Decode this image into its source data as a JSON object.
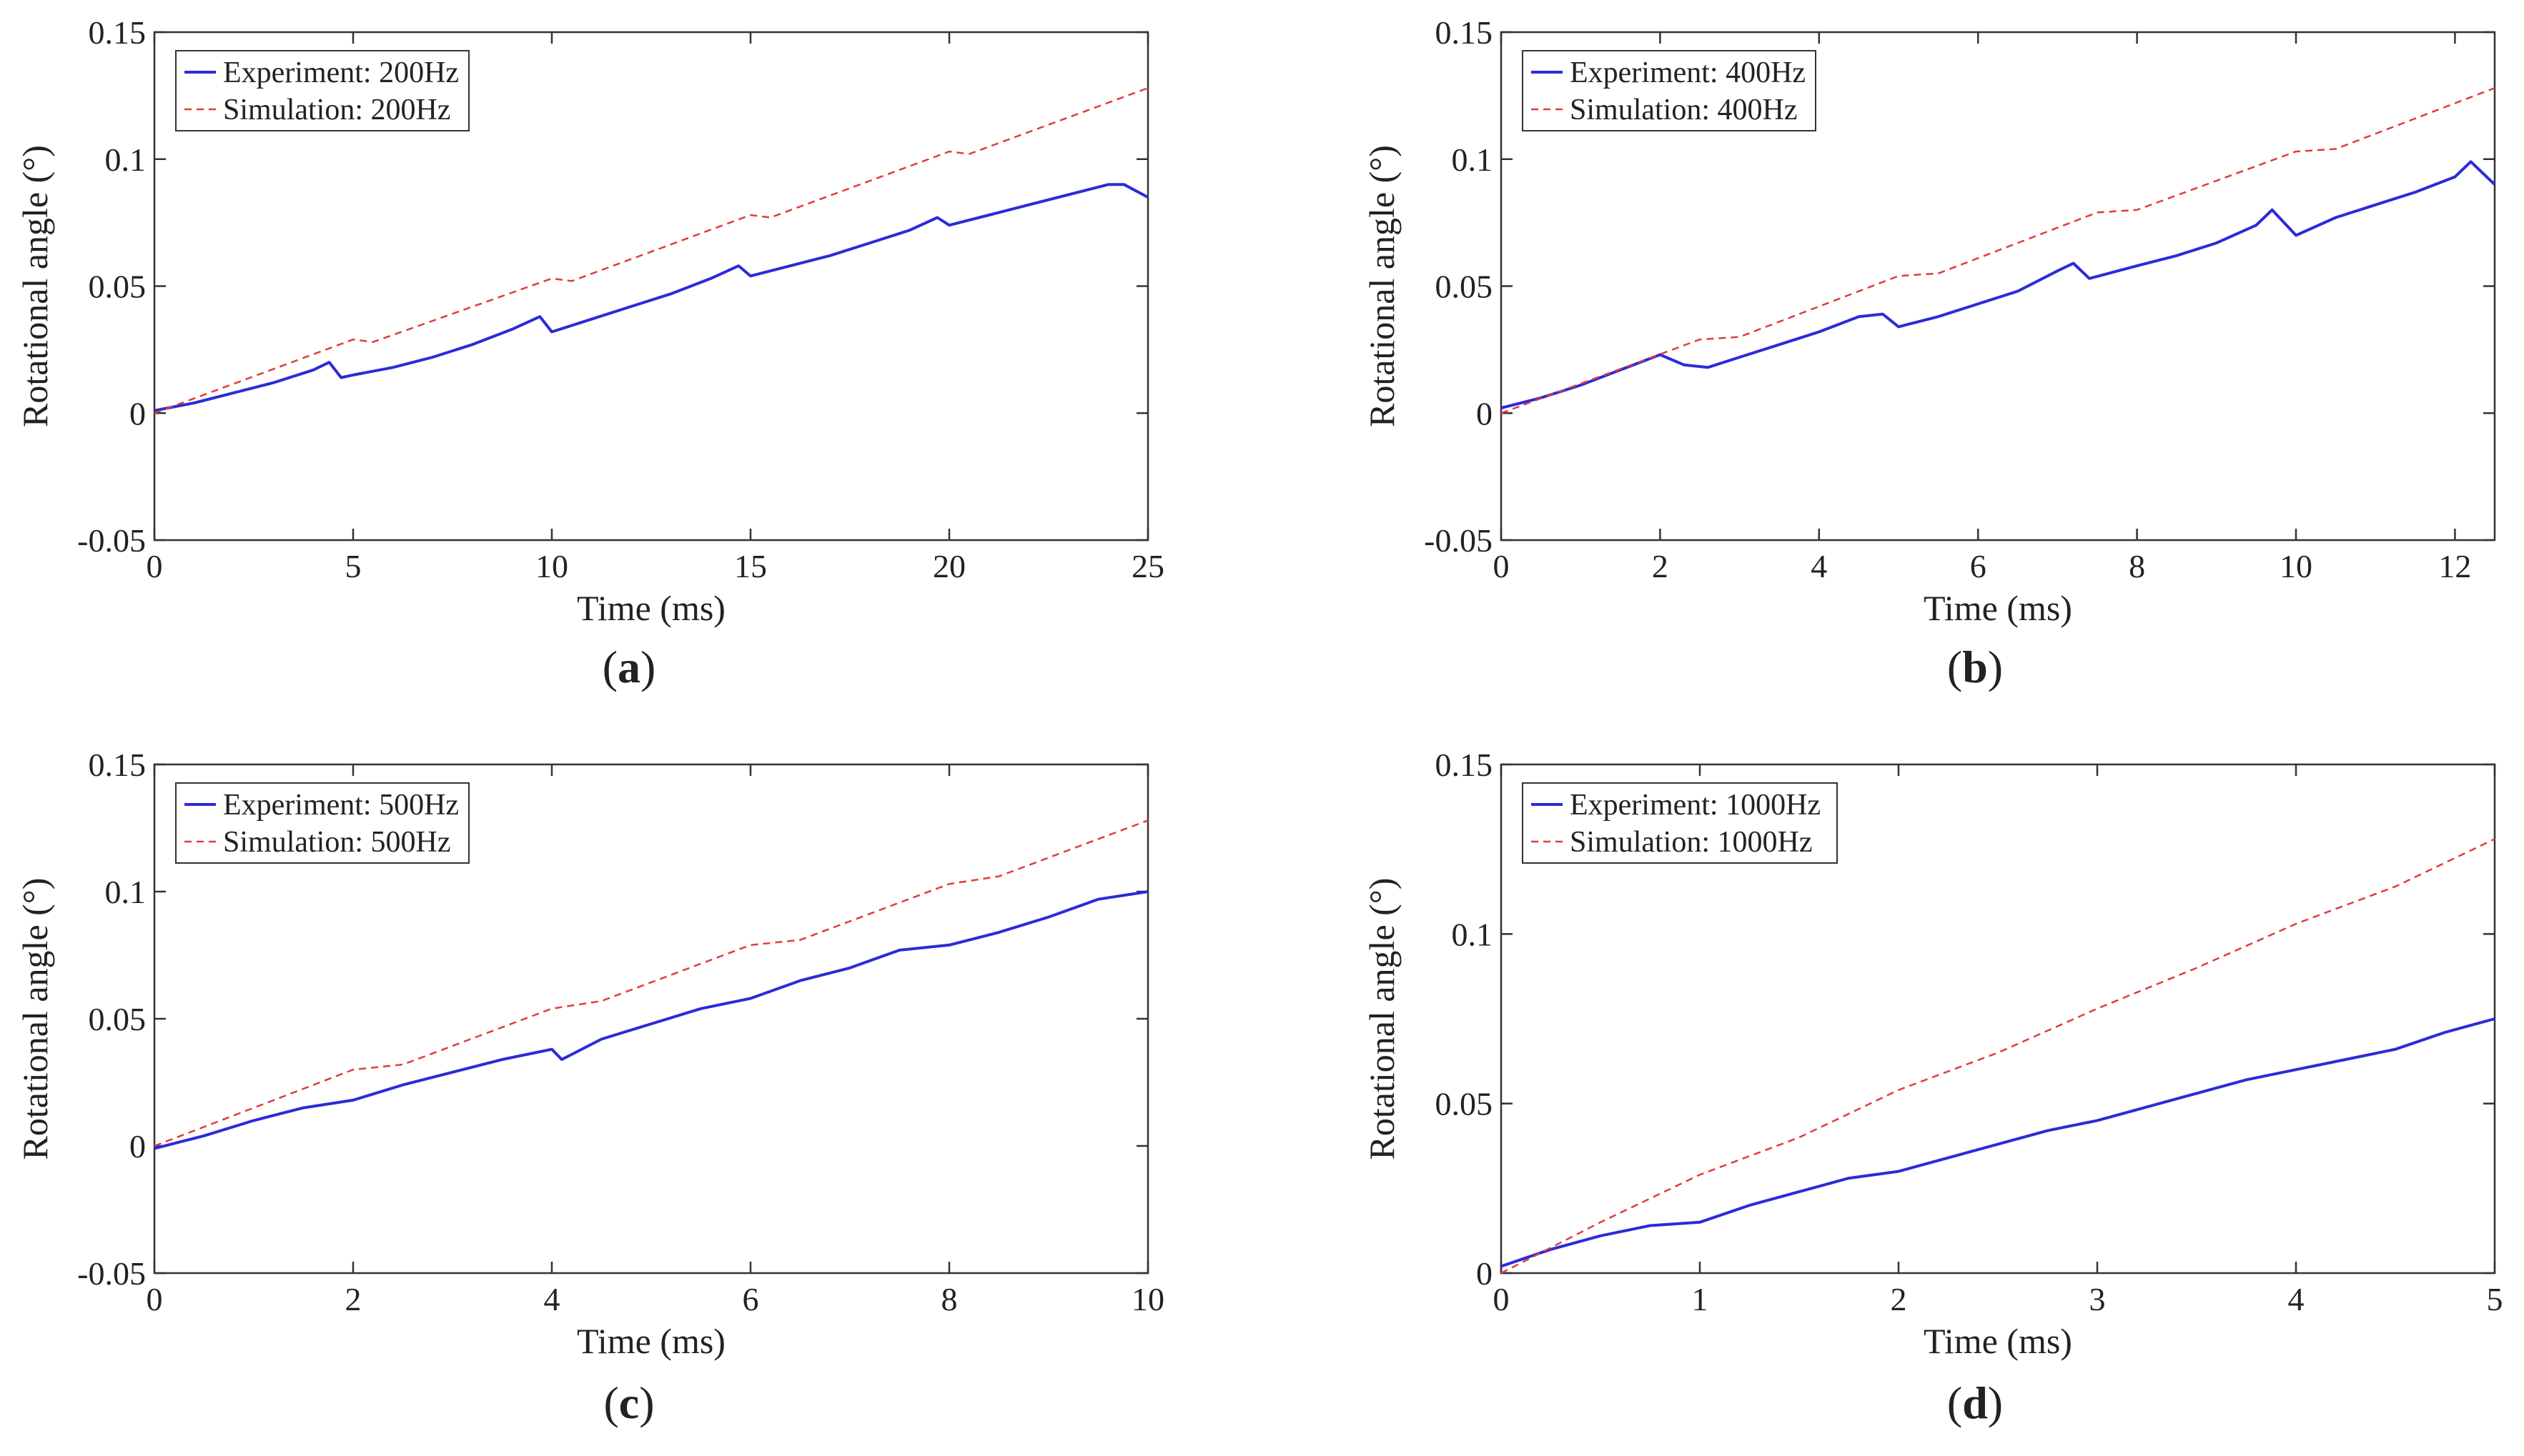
{
  "colors": {
    "experiment": "#2b2bd9",
    "simulation": "#e03c3c",
    "axes": "#333333",
    "text": "#222222"
  },
  "chart_data": [
    {
      "id": "a",
      "caption": {
        "open": "(",
        "letter": "a",
        "close": ")"
      },
      "type": "line",
      "xlabel": "Time (ms)",
      "ylabel": "Rotational angle (°)",
      "xlim": [
        0,
        25
      ],
      "ylim": [
        -0.05,
        0.15
      ],
      "xticks": [
        0,
        5,
        10,
        15,
        20,
        25
      ],
      "xtick_labels": [
        "0",
        "5",
        "10",
        "15",
        "20",
        "25"
      ],
      "yticks": [
        -0.05,
        0,
        0.05,
        0.1,
        0.15
      ],
      "ytick_labels": [
        "-0.05",
        "0",
        "0.05",
        "0.1",
        "0.15"
      ],
      "legend_position": "top-left",
      "series": [
        {
          "name": "Experiment: 200Hz",
          "style": "solid",
          "points": [
            [
              0,
              0.001
            ],
            [
              1,
              0.004
            ],
            [
              2,
              0.008
            ],
            [
              3,
              0.012
            ],
            [
              4,
              0.017
            ],
            [
              4.4,
              0.02
            ],
            [
              4.7,
              0.014
            ],
            [
              5,
              0.015
            ],
            [
              6,
              0.018
            ],
            [
              7,
              0.022
            ],
            [
              8,
              0.027
            ],
            [
              9,
              0.033
            ],
            [
              9.7,
              0.038
            ],
            [
              10,
              0.032
            ],
            [
              11,
              0.037
            ],
            [
              12,
              0.042
            ],
            [
              13,
              0.047
            ],
            [
              14,
              0.053
            ],
            [
              14.7,
              0.058
            ],
            [
              15,
              0.054
            ],
            [
              16,
              0.058
            ],
            [
              17,
              0.062
            ],
            [
              18,
              0.067
            ],
            [
              19,
              0.072
            ],
            [
              19.7,
              0.077
            ],
            [
              20,
              0.074
            ],
            [
              21,
              0.078
            ],
            [
              22,
              0.082
            ],
            [
              23,
              0.086
            ],
            [
              24,
              0.09
            ],
            [
              24.4,
              0.09
            ],
            [
              25,
              0.085
            ]
          ]
        },
        {
          "name": "Simulation: 200Hz",
          "style": "dashed",
          "points": [
            [
              0,
              0
            ],
            [
              5,
              0.029
            ],
            [
              5.5,
              0.028
            ],
            [
              10,
              0.053
            ],
            [
              10.5,
              0.052
            ],
            [
              15,
              0.078
            ],
            [
              15.5,
              0.077
            ],
            [
              20,
              0.103
            ],
            [
              20.5,
              0.102
            ],
            [
              25,
              0.128
            ]
          ]
        }
      ]
    },
    {
      "id": "b",
      "caption": {
        "open": "(",
        "letter": "b",
        "close": ")"
      },
      "type": "line",
      "xlabel": "Time (ms)",
      "ylabel": "Rotational angle (°)",
      "xlim": [
        0,
        12.5
      ],
      "ylim": [
        -0.05,
        0.15
      ],
      "xticks": [
        0,
        2,
        4,
        6,
        8,
        10,
        12
      ],
      "xtick_labels": [
        "0",
        "2",
        "4",
        "6",
        "8",
        "10",
        "12"
      ],
      "yticks": [
        -0.05,
        0,
        0.05,
        0.1,
        0.15
      ],
      "ytick_labels": [
        "-0.05",
        "0",
        "0.05",
        "0.1",
        "0.15"
      ],
      "legend_position": "top-left",
      "series": [
        {
          "name": "Experiment: 400Hz",
          "style": "solid",
          "points": [
            [
              0,
              0.002
            ],
            [
              0.5,
              0.006
            ],
            [
              1,
              0.011
            ],
            [
              1.5,
              0.017
            ],
            [
              2,
              0.023
            ],
            [
              2.3,
              0.019
            ],
            [
              2.6,
              0.018
            ],
            [
              3,
              0.022
            ],
            [
              3.5,
              0.027
            ],
            [
              4,
              0.032
            ],
            [
              4.5,
              0.038
            ],
            [
              4.8,
              0.039
            ],
            [
              5,
              0.034
            ],
            [
              5.5,
              0.038
            ],
            [
              6,
              0.043
            ],
            [
              6.5,
              0.048
            ],
            [
              7,
              0.056
            ],
            [
              7.2,
              0.059
            ],
            [
              7.4,
              0.053
            ],
            [
              8,
              0.058
            ],
            [
              8.5,
              0.062
            ],
            [
              9,
              0.067
            ],
            [
              9.5,
              0.074
            ],
            [
              9.7,
              0.08
            ],
            [
              10,
              0.07
            ],
            [
              10.5,
              0.077
            ],
            [
              11,
              0.082
            ],
            [
              11.5,
              0.087
            ],
            [
              12,
              0.093
            ],
            [
              12.2,
              0.099
            ],
            [
              12.5,
              0.09
            ]
          ]
        },
        {
          "name": "Simulation: 400Hz",
          "style": "dashed",
          "points": [
            [
              0,
              0
            ],
            [
              2.5,
              0.029
            ],
            [
              3,
              0.03
            ],
            [
              5,
              0.054
            ],
            [
              5.5,
              0.055
            ],
            [
              7.5,
              0.079
            ],
            [
              8,
              0.08
            ],
            [
              10,
              0.103
            ],
            [
              10.5,
              0.104
            ],
            [
              12.5,
              0.128
            ]
          ]
        }
      ]
    },
    {
      "id": "c",
      "caption": {
        "open": "(",
        "letter": "c",
        "close": ")"
      },
      "type": "line",
      "xlabel": "Time (ms)",
      "ylabel": "Rotational angle (°)",
      "xlim": [
        0,
        10
      ],
      "ylim": [
        -0.05,
        0.15
      ],
      "xticks": [
        0,
        2,
        4,
        6,
        8,
        10
      ],
      "xtick_labels": [
        "0",
        "2",
        "4",
        "6",
        "8",
        "10"
      ],
      "yticks": [
        -0.05,
        0,
        0.05,
        0.1,
        0.15
      ],
      "ytick_labels": [
        "-0.05",
        "0",
        "0.05",
        "0.1",
        "0.15"
      ],
      "legend_position": "top-left",
      "series": [
        {
          "name": "Experiment: 500Hz",
          "style": "solid",
          "points": [
            [
              0,
              -0.001
            ],
            [
              0.5,
              0.004
            ],
            [
              1,
              0.01
            ],
            [
              1.5,
              0.015
            ],
            [
              2,
              0.018
            ],
            [
              2.5,
              0.024
            ],
            [
              3,
              0.029
            ],
            [
              3.5,
              0.034
            ],
            [
              4,
              0.038
            ],
            [
              4.1,
              0.034
            ],
            [
              4.5,
              0.042
            ],
            [
              5,
              0.048
            ],
            [
              5.5,
              0.054
            ],
            [
              6,
              0.058
            ],
            [
              6.5,
              0.065
            ],
            [
              7,
              0.07
            ],
            [
              7.5,
              0.077
            ],
            [
              8,
              0.079
            ],
            [
              8.5,
              0.084
            ],
            [
              9,
              0.09
            ],
            [
              9.5,
              0.097
            ],
            [
              10,
              0.1
            ]
          ]
        },
        {
          "name": "Simulation: 500Hz",
          "style": "dashed",
          "points": [
            [
              0,
              0
            ],
            [
              2,
              0.03
            ],
            [
              2.5,
              0.032
            ],
            [
              4,
              0.054
            ],
            [
              4.5,
              0.057
            ],
            [
              6,
              0.079
            ],
            [
              6.5,
              0.081
            ],
            [
              8,
              0.103
            ],
            [
              8.5,
              0.106
            ],
            [
              10,
              0.128
            ]
          ]
        }
      ]
    },
    {
      "id": "d",
      "caption": {
        "open": "(",
        "letter": "d",
        "close": ")"
      },
      "type": "line",
      "xlabel": "Time (ms)",
      "ylabel": "Rotational angle (°)",
      "xlim": [
        0,
        5
      ],
      "ylim": [
        0,
        0.15
      ],
      "xticks": [
        0,
        1,
        2,
        3,
        4,
        5
      ],
      "xtick_labels": [
        "0",
        "1",
        "2",
        "3",
        "4",
        "5"
      ],
      "yticks": [
        0,
        0.05,
        0.1,
        0.15
      ],
      "ytick_labels": [
        "0",
        "0.05",
        "0.1",
        "0.15"
      ],
      "legend_position": "top-left",
      "series": [
        {
          "name": "Experiment: 1000Hz",
          "style": "solid",
          "points": [
            [
              0,
              0.002
            ],
            [
              0.25,
              0.007
            ],
            [
              0.5,
              0.011
            ],
            [
              0.75,
              0.014
            ],
            [
              1,
              0.015
            ],
            [
              1.25,
              0.02
            ],
            [
              1.5,
              0.024
            ],
            [
              1.75,
              0.028
            ],
            [
              2,
              0.03
            ],
            [
              2.25,
              0.034
            ],
            [
              2.5,
              0.038
            ],
            [
              2.75,
              0.042
            ],
            [
              3,
              0.045
            ],
            [
              3.25,
              0.049
            ],
            [
              3.5,
              0.053
            ],
            [
              3.75,
              0.057
            ],
            [
              4,
              0.06
            ],
            [
              4.25,
              0.063
            ],
            [
              4.5,
              0.066
            ],
            [
              4.75,
              0.071
            ],
            [
              5,
              0.075
            ]
          ]
        },
        {
          "name": "Simulation: 1000Hz",
          "style": "dashed",
          "points": [
            [
              0,
              0
            ],
            [
              0.5,
              0.015
            ],
            [
              1,
              0.029
            ],
            [
              1.5,
              0.04
            ],
            [
              2,
              0.054
            ],
            [
              2.5,
              0.065
            ],
            [
              3,
              0.078
            ],
            [
              3.5,
              0.09
            ],
            [
              4,
              0.103
            ],
            [
              4.5,
              0.114
            ],
            [
              5,
              0.128
            ]
          ]
        }
      ]
    }
  ]
}
